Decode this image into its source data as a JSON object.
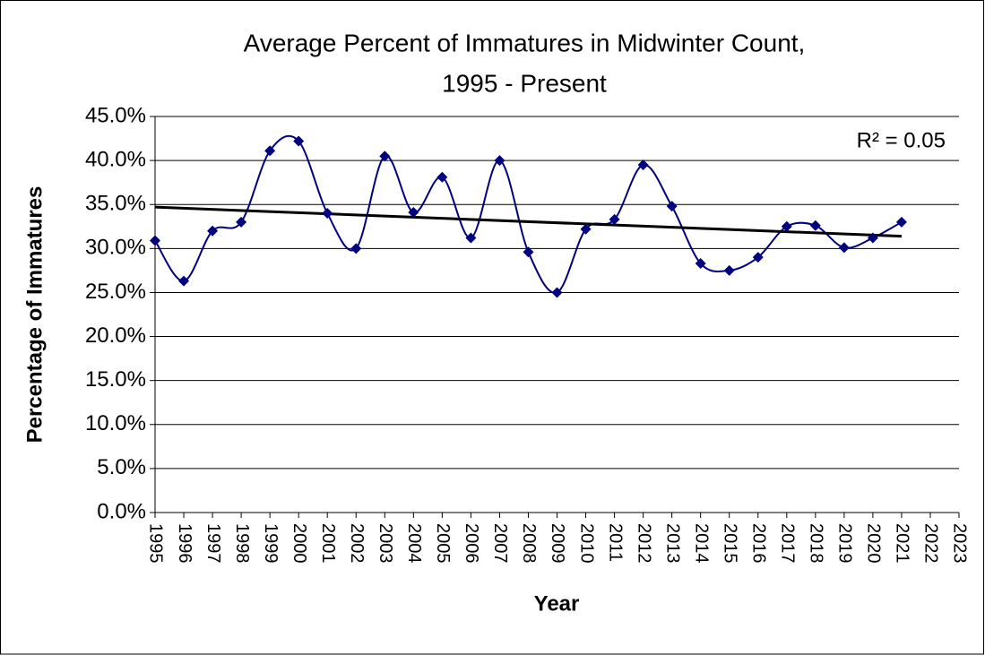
{
  "chart_data": {
    "type": "line",
    "title": "Average Percent of Immatures in Midwinter Count,",
    "subtitle": "1995 - Present",
    "x_label": "Year",
    "y_label": "Percentage of Immatures",
    "annotation": "R² = 0.05",
    "x": [
      1995,
      1996,
      1997,
      1998,
      1999,
      2000,
      2001,
      2002,
      2003,
      2004,
      2005,
      2006,
      2007,
      2008,
      2009,
      2010,
      2011,
      2012,
      2013,
      2014,
      2015,
      2016,
      2017,
      2018,
      2019,
      2020,
      2021
    ],
    "values": [
      30.9,
      26.3,
      32.0,
      33.0,
      41.1,
      42.2,
      34.0,
      30.0,
      40.5,
      34.1,
      38.1,
      31.2,
      40.0,
      29.6,
      25.0,
      32.2,
      33.3,
      39.5,
      34.8,
      28.3,
      27.5,
      29.0,
      32.5,
      32.6,
      30.1,
      31.2,
      33.0
    ],
    "color": "#000080",
    "trendline": {
      "x": [
        1995,
        2021
      ],
      "values": [
        34.7,
        31.4
      ],
      "color": "#000000"
    },
    "xlim": [
      1995,
      2023
    ],
    "xticks": [
      1995,
      1996,
      1997,
      1998,
      1999,
      2000,
      2001,
      2002,
      2003,
      2004,
      2005,
      2006,
      2007,
      2008,
      2009,
      2010,
      2011,
      2012,
      2013,
      2014,
      2015,
      2016,
      2017,
      2018,
      2019,
      2020,
      2021,
      2022,
      2023
    ],
    "ylim": [
      0,
      45
    ],
    "yticks": [
      {
        "value": 0,
        "label": "0.0%"
      },
      {
        "value": 5,
        "label": "5.0%"
      },
      {
        "value": 10,
        "label": "10.0%"
      },
      {
        "value": 15,
        "label": "15.0%"
      },
      {
        "value": 20,
        "label": "20.0%"
      },
      {
        "value": 25,
        "label": "25.0%"
      },
      {
        "value": 30,
        "label": "30.0%"
      },
      {
        "value": 35,
        "label": "35.0%"
      },
      {
        "value": 40,
        "label": "40.0%"
      },
      {
        "value": 45,
        "label": "45.0%"
      }
    ],
    "grid": true
  }
}
